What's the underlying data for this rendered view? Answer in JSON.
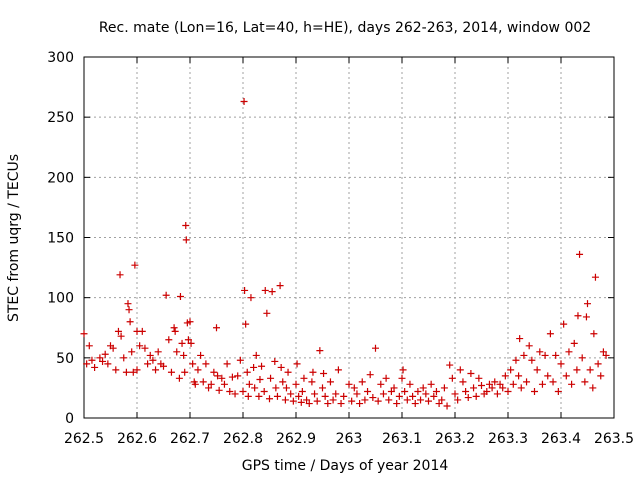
{
  "chart_data": {
    "type": "scatter",
    "title": "Rec. mate (Lon=16, Lat=40, h=HE), days 262-263, 2014, window 002",
    "xlabel": "GPS time / Days of year 2014",
    "ylabel": "STEC from uqrg / TECUs",
    "xlim": [
      262.5,
      263.5
    ],
    "ylim": [
      0,
      300
    ],
    "x_ticks": [
      262.5,
      262.6,
      262.7,
      262.8,
      262.9,
      263.0,
      263.1,
      263.2,
      263.3,
      263.4,
      263.5
    ],
    "x_tick_labels": [
      "262.5",
      "262.6",
      "262.7",
      "262.8",
      "262.9",
      "263",
      "263.1",
      "263.2",
      "263.3",
      "263.4",
      "263.5"
    ],
    "y_ticks": [
      0,
      50,
      100,
      150,
      200,
      250,
      300
    ],
    "y_tick_labels": [
      "0",
      "50",
      "100",
      "150",
      "200",
      "250",
      "300"
    ],
    "grid": true,
    "marker": "+",
    "color": "#cc0000",
    "points": [
      [
        262.5,
        70
      ],
      [
        262.505,
        45
      ],
      [
        262.51,
        60
      ],
      [
        262.515,
        48
      ],
      [
        262.52,
        42
      ],
      [
        262.53,
        50
      ],
      [
        262.535,
        47
      ],
      [
        262.54,
        53
      ],
      [
        262.545,
        45
      ],
      [
        262.55,
        60
      ],
      [
        262.555,
        58
      ],
      [
        262.56,
        40
      ],
      [
        262.565,
        72
      ],
      [
        262.568,
        119
      ],
      [
        262.57,
        68
      ],
      [
        262.575,
        50
      ],
      [
        262.58,
        38
      ],
      [
        262.583,
        95
      ],
      [
        262.585,
        90
      ],
      [
        262.587,
        80
      ],
      [
        262.59,
        55
      ],
      [
        262.593,
        38
      ],
      [
        262.596,
        127
      ],
      [
        262.6,
        72
      ],
      [
        262.6,
        40
      ],
      [
        262.605,
        60
      ],
      [
        262.61,
        72
      ],
      [
        262.615,
        58
      ],
      [
        262.62,
        45
      ],
      [
        262.625,
        52
      ],
      [
        262.63,
        48
      ],
      [
        262.635,
        40
      ],
      [
        262.64,
        55
      ],
      [
        262.645,
        45
      ],
      [
        262.65,
        43
      ],
      [
        262.655,
        102
      ],
      [
        262.66,
        65
      ],
      [
        262.665,
        38
      ],
      [
        262.67,
        75
      ],
      [
        262.672,
        72
      ],
      [
        262.675,
        55
      ],
      [
        262.68,
        33
      ],
      [
        262.682,
        101
      ],
      [
        262.685,
        62
      ],
      [
        262.688,
        52
      ],
      [
        262.69,
        38
      ],
      [
        262.692,
        160
      ],
      [
        262.693,
        148
      ],
      [
        262.695,
        79
      ],
      [
        262.697,
        65
      ],
      [
        262.7,
        80
      ],
      [
        262.702,
        62
      ],
      [
        262.705,
        45
      ],
      [
        262.708,
        30
      ],
      [
        262.71,
        28
      ],
      [
        262.715,
        40
      ],
      [
        262.72,
        52
      ],
      [
        262.725,
        30
      ],
      [
        262.73,
        45
      ],
      [
        262.735,
        25
      ],
      [
        262.74,
        28
      ],
      [
        262.745,
        38
      ],
      [
        262.75,
        75
      ],
      [
        262.752,
        35
      ],
      [
        262.755,
        23
      ],
      [
        262.76,
        33
      ],
      [
        262.765,
        28
      ],
      [
        262.77,
        45
      ],
      [
        262.775,
        22
      ],
      [
        262.78,
        34
      ],
      [
        262.785,
        20
      ],
      [
        262.79,
        35
      ],
      [
        262.795,
        48
      ],
      [
        262.8,
        22
      ],
      [
        262.802,
        263
      ],
      [
        262.803,
        106
      ],
      [
        262.805,
        78
      ],
      [
        262.808,
        38
      ],
      [
        262.81,
        18
      ],
      [
        262.812,
        28
      ],
      [
        262.815,
        100
      ],
      [
        262.82,
        42
      ],
      [
        262.822,
        25
      ],
      [
        262.825,
        52
      ],
      [
        262.83,
        18
      ],
      [
        262.832,
        32
      ],
      [
        262.835,
        43
      ],
      [
        262.84,
        22
      ],
      [
        262.842,
        106
      ],
      [
        262.845,
        87
      ],
      [
        262.85,
        16
      ],
      [
        262.852,
        33
      ],
      [
        262.855,
        105
      ],
      [
        262.86,
        47
      ],
      [
        262.862,
        25
      ],
      [
        262.865,
        18
      ],
      [
        262.87,
        110
      ],
      [
        262.872,
        42
      ],
      [
        262.875,
        30
      ],
      [
        262.88,
        15
      ],
      [
        262.882,
        25
      ],
      [
        262.885,
        38
      ],
      [
        262.89,
        20
      ],
      [
        262.895,
        14
      ],
      [
        262.9,
        28
      ],
      [
        262.902,
        45
      ],
      [
        262.905,
        18
      ],
      [
        262.91,
        13
      ],
      [
        262.912,
        22
      ],
      [
        262.915,
        33
      ],
      [
        262.92,
        15
      ],
      [
        262.925,
        12
      ],
      [
        262.93,
        30
      ],
      [
        262.932,
        38
      ],
      [
        262.935,
        20
      ],
      [
        262.94,
        14
      ],
      [
        262.945,
        56
      ],
      [
        262.95,
        25
      ],
      [
        262.952,
        37
      ],
      [
        262.955,
        18
      ],
      [
        262.96,
        12
      ],
      [
        262.965,
        30
      ],
      [
        262.97,
        15
      ],
      [
        262.975,
        20
      ],
      [
        262.98,
        40
      ],
      [
        262.985,
        12
      ],
      [
        262.99,
        18
      ],
      [
        263.0,
        28
      ],
      [
        263.005,
        14
      ],
      [
        263.01,
        25
      ],
      [
        263.015,
        20
      ],
      [
        263.02,
        12
      ],
      [
        263.025,
        30
      ],
      [
        263.03,
        15
      ],
      [
        263.035,
        22
      ],
      [
        263.04,
        36
      ],
      [
        263.045,
        17
      ],
      [
        263.05,
        58
      ],
      [
        263.055,
        14
      ],
      [
        263.06,
        28
      ],
      [
        263.065,
        20
      ],
      [
        263.07,
        33
      ],
      [
        263.075,
        15
      ],
      [
        263.08,
        22
      ],
      [
        263.085,
        25
      ],
      [
        263.09,
        12
      ],
      [
        263.095,
        18
      ],
      [
        263.1,
        33
      ],
      [
        263.102,
        40
      ],
      [
        263.105,
        22
      ],
      [
        263.11,
        15
      ],
      [
        263.115,
        28
      ],
      [
        263.12,
        18
      ],
      [
        263.125,
        12
      ],
      [
        263.13,
        22
      ],
      [
        263.135,
        15
      ],
      [
        263.14,
        25
      ],
      [
        263.145,
        20
      ],
      [
        263.15,
        14
      ],
      [
        263.155,
        28
      ],
      [
        263.16,
        18
      ],
      [
        263.165,
        22
      ],
      [
        263.17,
        12
      ],
      [
        263.175,
        15
      ],
      [
        263.18,
        25
      ],
      [
        263.185,
        10
      ],
      [
        263.19,
        44
      ],
      [
        263.195,
        33
      ],
      [
        263.2,
        20
      ],
      [
        263.205,
        15
      ],
      [
        263.21,
        40
      ],
      [
        263.215,
        30
      ],
      [
        263.22,
        22
      ],
      [
        263.225,
        17
      ],
      [
        263.23,
        37
      ],
      [
        263.235,
        25
      ],
      [
        263.24,
        18
      ],
      [
        263.245,
        33
      ],
      [
        263.25,
        27
      ],
      [
        263.255,
        20
      ],
      [
        263.26,
        22
      ],
      [
        263.265,
        28
      ],
      [
        263.27,
        25
      ],
      [
        263.275,
        30
      ],
      [
        263.28,
        20
      ],
      [
        263.285,
        28
      ],
      [
        263.29,
        25
      ],
      [
        263.295,
        35
      ],
      [
        263.3,
        22
      ],
      [
        263.305,
        40
      ],
      [
        263.31,
        28
      ],
      [
        263.315,
        48
      ],
      [
        263.32,
        35
      ],
      [
        263.322,
        66
      ],
      [
        263.325,
        25
      ],
      [
        263.33,
        52
      ],
      [
        263.335,
        30
      ],
      [
        263.34,
        60
      ],
      [
        263.345,
        48
      ],
      [
        263.35,
        22
      ],
      [
        263.355,
        40
      ],
      [
        263.36,
        55
      ],
      [
        263.365,
        28
      ],
      [
        263.37,
        52
      ],
      [
        263.375,
        35
      ],
      [
        263.38,
        70
      ],
      [
        263.385,
        30
      ],
      [
        263.39,
        52
      ],
      [
        263.395,
        22
      ],
      [
        263.4,
        45
      ],
      [
        263.405,
        78
      ],
      [
        263.41,
        35
      ],
      [
        263.415,
        55
      ],
      [
        263.42,
        28
      ],
      [
        263.425,
        62
      ],
      [
        263.43,
        40
      ],
      [
        263.432,
        85
      ],
      [
        263.435,
        136
      ],
      [
        263.44,
        50
      ],
      [
        263.445,
        30
      ],
      [
        263.448,
        84
      ],
      [
        263.45,
        95
      ],
      [
        263.455,
        40
      ],
      [
        263.46,
        25
      ],
      [
        263.462,
        70
      ],
      [
        263.465,
        117
      ],
      [
        263.47,
        45
      ],
      [
        263.475,
        35
      ],
      [
        263.48,
        55
      ],
      [
        263.485,
        52
      ]
    ]
  }
}
